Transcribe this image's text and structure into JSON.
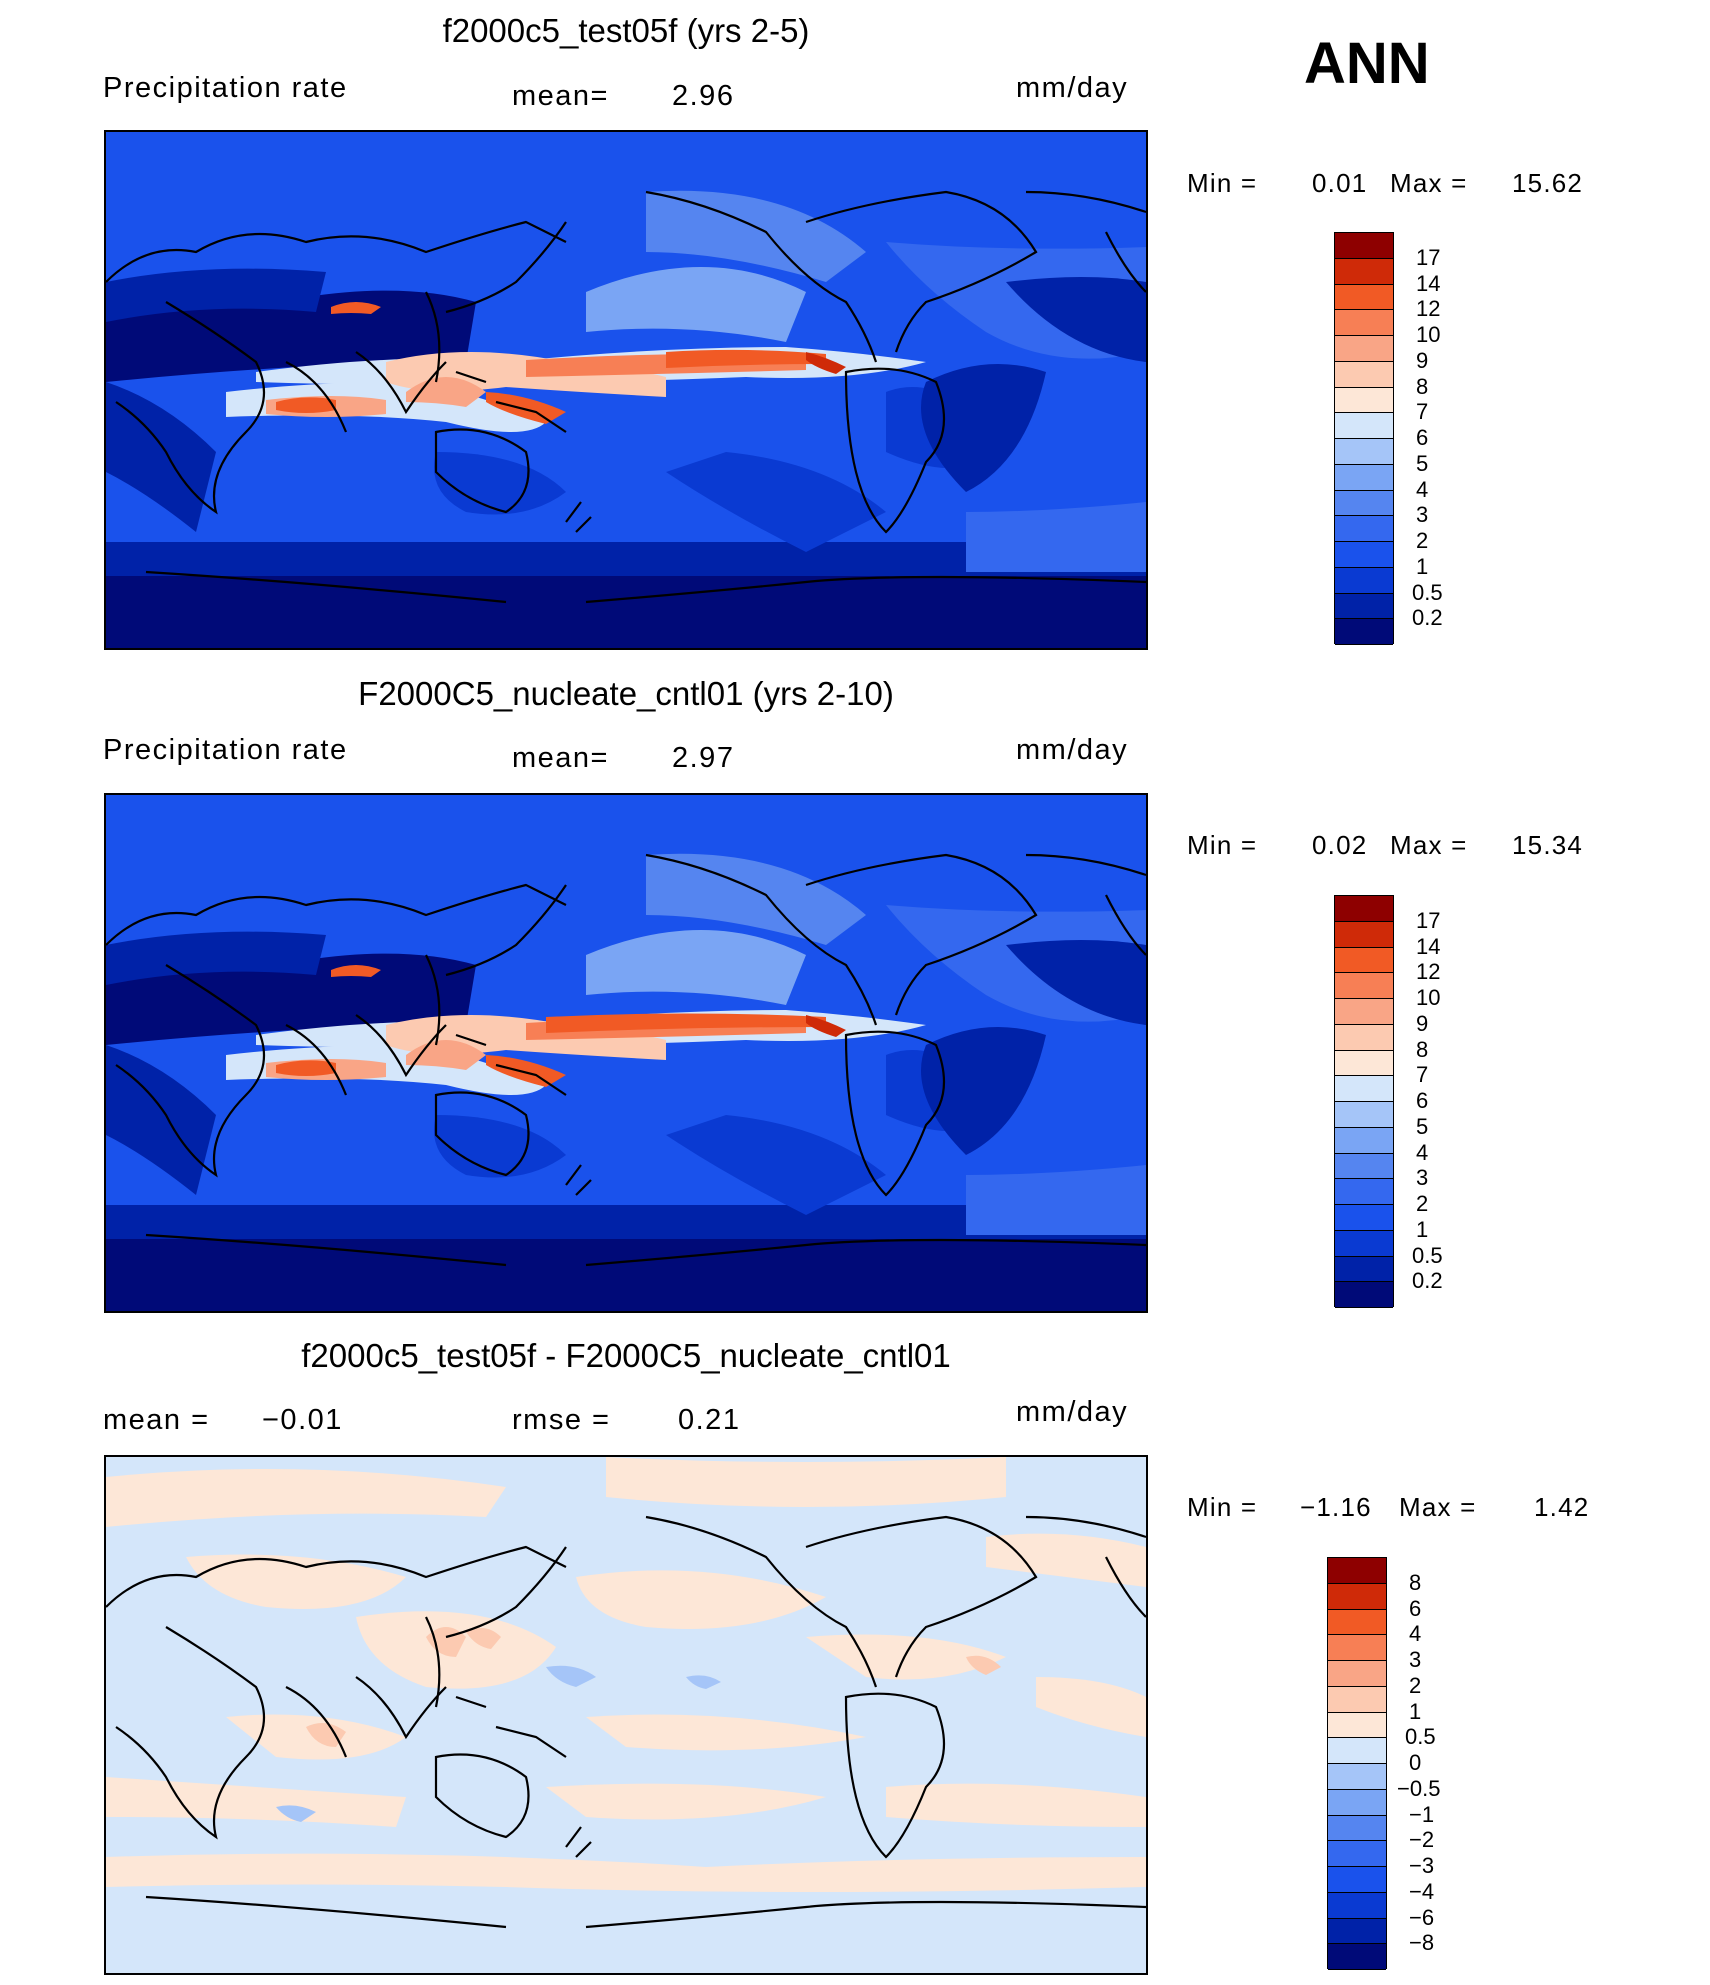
{
  "figure": {
    "season": "ANN"
  },
  "panels": [
    {
      "id": "test",
      "title": "f2000c5_test05f (yrs 2-5)",
      "left_label": "Precipitation  rate",
      "center_label": "mean=",
      "center_value": "2.96",
      "units": "mm/day",
      "min_label": "Min  =",
      "min_value": "0.01",
      "max_label": "Max  =",
      "max_value": "15.62"
    },
    {
      "id": "control",
      "title": "F2000C5_nucleate_cntl01 (yrs 2-10)",
      "left_label": "Precipitation  rate",
      "center_label": "mean=",
      "center_value": "2.97",
      "units": "mm/day",
      "min_label": "Min  =",
      "min_value": "0.02",
      "max_label": "Max  =",
      "max_value": "15.34"
    },
    {
      "id": "difference",
      "title": "f2000c5_test05f - F2000C5_nucleate_cntl01",
      "left_label": "mean  =",
      "left_value": "−0.01",
      "center_label": "rmse  =",
      "center_value": "0.21",
      "units": "mm/day",
      "min_label": "Min  =",
      "min_value": "−1.16",
      "max_label": "Max  =",
      "max_value": "1.42"
    }
  ],
  "chart_data": [
    {
      "type": "heatmap",
      "title": "f2000c5_test05f (yrs 2-5)",
      "variable": "Precipitation  rate",
      "units": "mm/day",
      "mean": 2.96,
      "min": 0.01,
      "max": 15.62,
      "colorbar_levels": [
        "0.2",
        "0.5",
        "1",
        "2",
        "3",
        "4",
        "5",
        "6",
        "7",
        "8",
        "9",
        "10",
        "12",
        "14",
        "17"
      ],
      "colorbar_colors": [
        "#000a78",
        "#0022a8",
        "#0a3ad2",
        "#1a52ec",
        "#3468ef",
        "#5585f0",
        "#7aa5f4",
        "#a5c5f8",
        "#d4e6fa",
        "#fde7d7",
        "#fccab1",
        "#f9a586",
        "#f77f55",
        "#f15a25",
        "#cf2a08",
        "#8e0000"
      ]
    },
    {
      "type": "heatmap",
      "title": "F2000C5_nucleate_cntl01 (yrs 2-10)",
      "variable": "Precipitation  rate",
      "units": "mm/day",
      "mean": 2.97,
      "min": 0.02,
      "max": 15.34,
      "colorbar_levels": [
        "0.2",
        "0.5",
        "1",
        "2",
        "3",
        "4",
        "5",
        "6",
        "7",
        "8",
        "9",
        "10",
        "12",
        "14",
        "17"
      ],
      "colorbar_colors": [
        "#000a78",
        "#0022a8",
        "#0a3ad2",
        "#1a52ec",
        "#3468ef",
        "#5585f0",
        "#7aa5f4",
        "#a5c5f8",
        "#d4e6fa",
        "#fde7d7",
        "#fccab1",
        "#f9a586",
        "#f77f55",
        "#f15a25",
        "#cf2a08",
        "#8e0000"
      ]
    },
    {
      "type": "heatmap",
      "title": "f2000c5_test05f - F2000C5_nucleate_cntl01",
      "units": "mm/day",
      "mean": -0.01,
      "rmse": 0.21,
      "min": -1.16,
      "max": 1.42,
      "colorbar_levels": [
        "−8",
        "−6",
        "−4",
        "−3",
        "−2",
        "−1",
        "−0.5",
        "0",
        "0.5",
        "1",
        "2",
        "3",
        "4",
        "6",
        "8"
      ],
      "colorbar_colors": [
        "#000a78",
        "#0022a8",
        "#0a3ad2",
        "#1a52ec",
        "#3468ef",
        "#5585f0",
        "#7aa5f4",
        "#a5c5f8",
        "#d4e6fa",
        "#fde7d7",
        "#fccab1",
        "#f9a586",
        "#f77f55",
        "#f15a25",
        "#cf2a08",
        "#8e0000"
      ]
    }
  ]
}
